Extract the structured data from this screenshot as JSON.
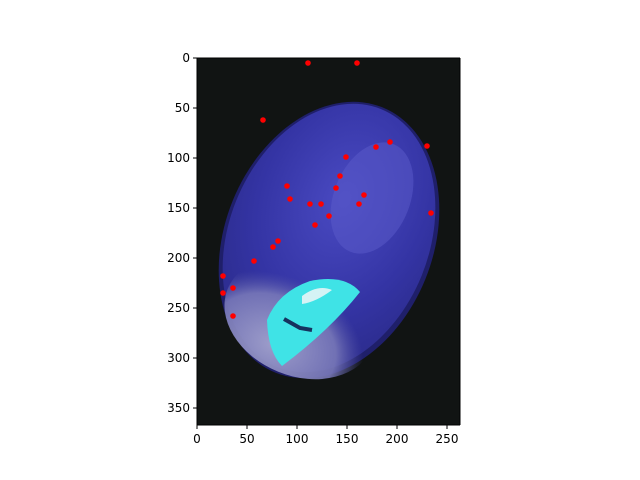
{
  "chart_data": {
    "type": "scatter",
    "image_extent": {
      "x": [
        0,
        263
      ],
      "y": [
        367,
        0
      ]
    },
    "xlim": [
      0,
      263
    ],
    "ylim": [
      367,
      0
    ],
    "y_inverted": true,
    "xticks": [
      0,
      50,
      100,
      150,
      200,
      250
    ],
    "yticks": [
      0,
      50,
      100,
      150,
      200,
      250,
      300,
      350
    ],
    "xtick_labels": [
      "0",
      "50",
      "100",
      "150",
      "200",
      "250"
    ],
    "ytick_labels": [
      "0",
      "50",
      "100",
      "150",
      "200",
      "250",
      "300",
      "350"
    ],
    "title": "",
    "xlabel": "",
    "ylabel": "",
    "grid": false,
    "marker_color": "#ff0000",
    "background_image": {
      "subject": "blue-stained oval specimen with cyan marker on dark background",
      "background_color": "#111413",
      "specimen_color": "#3a3aa8",
      "marker_color": "#3fe3e6"
    },
    "points": [
      {
        "x": 111,
        "y": 5
      },
      {
        "x": 160,
        "y": 5
      },
      {
        "x": 66,
        "y": 62
      },
      {
        "x": 193,
        "y": 84
      },
      {
        "x": 179,
        "y": 89
      },
      {
        "x": 230,
        "y": 88
      },
      {
        "x": 149,
        "y": 99
      },
      {
        "x": 143,
        "y": 118
      },
      {
        "x": 139,
        "y": 130
      },
      {
        "x": 90,
        "y": 128
      },
      {
        "x": 167,
        "y": 137
      },
      {
        "x": 93,
        "y": 141
      },
      {
        "x": 113,
        "y": 146
      },
      {
        "x": 124,
        "y": 146
      },
      {
        "x": 162,
        "y": 146
      },
      {
        "x": 234,
        "y": 155
      },
      {
        "x": 132,
        "y": 158
      },
      {
        "x": 118,
        "y": 167
      },
      {
        "x": 81,
        "y": 183
      },
      {
        "x": 76,
        "y": 189
      },
      {
        "x": 57,
        "y": 203
      },
      {
        "x": 26,
        "y": 218
      },
      {
        "x": 36,
        "y": 230
      },
      {
        "x": 26,
        "y": 235
      },
      {
        "x": 36,
        "y": 258
      }
    ]
  }
}
